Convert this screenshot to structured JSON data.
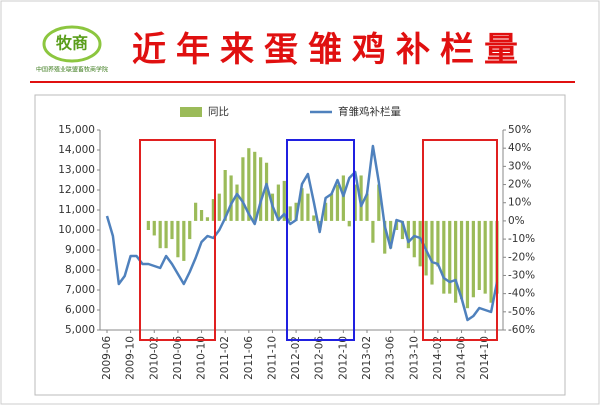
{
  "header": {
    "logo": "牧商",
    "org": "中国养殖业联盟畜牧商学院"
  },
  "chart_data": {
    "type": "bar-line",
    "title": "近年来蛋雏鸡补栏量",
    "categories": [
      "2009-06",
      null,
      null,
      null,
      "2009-10",
      null,
      null,
      null,
      "2010-02",
      null,
      null,
      null,
      "2010-06",
      null,
      null,
      null,
      "2010-10",
      null,
      null,
      null,
      "2011-02",
      null,
      null,
      null,
      "2011-06",
      null,
      null,
      null,
      "2011-10",
      null,
      null,
      null,
      "2012-02",
      null,
      null,
      null,
      "2012-06",
      null,
      null,
      null,
      "2012-10",
      null,
      null,
      null,
      "2013-02",
      null,
      null,
      null,
      "2013-06",
      null,
      null,
      null,
      "2013-10",
      null,
      null,
      null,
      "2014-02",
      null,
      null,
      null,
      "2014-06",
      null,
      null,
      null,
      "2014-10",
      null,
      null
    ],
    "series": [
      {
        "name": "同比",
        "type": "bar",
        "axis": "y2",
        "color": "#9bbb59",
        "values": [
          null,
          null,
          null,
          null,
          null,
          null,
          null,
          -5,
          -8,
          -15,
          -15,
          -10,
          -20,
          -22,
          -10,
          10,
          6,
          2,
          12,
          15,
          28,
          25,
          20,
          35,
          40,
          38,
          35,
          32,
          15,
          20,
          22,
          8,
          10,
          18,
          15,
          3,
          -5,
          10,
          15,
          20,
          25,
          -3,
          20,
          25,
          15,
          -12,
          20,
          -18,
          -15,
          -5,
          -10,
          -15,
          -20,
          -25,
          -30,
          -35,
          -25,
          -40,
          -40,
          -45,
          -43,
          -48,
          -42,
          -38,
          -40,
          -45,
          -40
        ]
      },
      {
        "name": "育雏鸡补栏量",
        "type": "line",
        "color": "#4f81bd",
        "values": [
          10700,
          9700,
          7300,
          7700,
          8700,
          8700,
          8300,
          8300,
          8200,
          8100,
          8700,
          8300,
          7800,
          7300,
          7900,
          8600,
          9400,
          9700,
          9600,
          10000,
          10600,
          11300,
          11800,
          11400,
          10800,
          10300,
          11400,
          12300,
          11200,
          10500,
          10800,
          10300,
          10500,
          12300,
          12800,
          11400,
          9900,
          11600,
          11800,
          12500,
          11700,
          12600,
          12900,
          11200,
          11800,
          14200,
          12400,
          10200,
          9100,
          10500,
          10400,
          9400,
          9700,
          9600,
          9000,
          8400,
          8300,
          7600,
          7400,
          7500,
          6600,
          5500,
          5700,
          6100,
          6000,
          5900,
          7400
        ]
      }
    ],
    "ylim": [
      5000,
      15000
    ],
    "yticks": [
      {
        "value": 5000,
        "label": "5,000"
      },
      {
        "value": 6000,
        "label": "6,000"
      },
      {
        "value": 7000,
        "label": "7,000"
      },
      {
        "value": 8000,
        "label": "8,000"
      },
      {
        "value": 9000,
        "label": "9,000"
      },
      {
        "value": 10000,
        "label": "10,000"
      },
      {
        "value": 11000,
        "label": "11,000"
      },
      {
        "value": 12000,
        "label": "12,000"
      },
      {
        "value": 13000,
        "label": "13,000"
      },
      {
        "value": 14000,
        "label": "14,000"
      },
      {
        "value": 15000,
        "label": "15,000"
      }
    ],
    "y2lim": [
      -60,
      50
    ],
    "y2ticks": [
      {
        "value": -60,
        "label": "-60%"
      },
      {
        "value": -50,
        "label": "-50%"
      },
      {
        "value": -40,
        "label": "-40%"
      },
      {
        "value": -30,
        "label": "-30%"
      },
      {
        "value": -20,
        "label": "-20%"
      },
      {
        "value": -10,
        "label": "-10%"
      },
      {
        "value": 0,
        "label": "0%"
      },
      {
        "value": 10,
        "label": "10%"
      },
      {
        "value": 20,
        "label": "20%"
      },
      {
        "value": 30,
        "label": "30%"
      },
      {
        "value": 40,
        "label": "40%"
      },
      {
        "value": 50,
        "label": "50%"
      }
    ],
    "legend": "top"
  }
}
